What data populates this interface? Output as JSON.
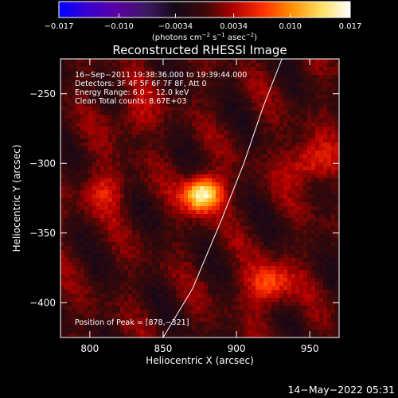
{
  "colorbar": {
    "min_label": "−0.017",
    "ticks": [
      "−0.017",
      "−0.010",
      "−0.0034",
      "0.0034",
      "0.010",
      "0.017"
    ],
    "tick_values": [
      -0.017,
      -0.01,
      -0.0034,
      0.0034,
      0.01,
      0.017
    ],
    "unit_prefix": "(photons cm",
    "unit_exp1": "−2",
    "unit_mid": " s",
    "unit_exp2": "−1",
    "unit_mid2": " asec",
    "unit_exp3": "−2",
    "unit_suffix": ")",
    "colormap": [
      "#0000ff",
      "#3a00d0",
      "#5a00a0",
      "#3c1860",
      "#160818",
      "#3a0808",
      "#b00000",
      "#ff3000",
      "#ff9000",
      "#ffe060",
      "#ffffff"
    ]
  },
  "chart_data": {
    "type": "heatmap",
    "title": "Reconstructed RHESSI Image",
    "xlabel": "Heliocentric X (arcsec)",
    "ylabel": "Heliocentric Y (arcsec)",
    "xlim": [
      780,
      970
    ],
    "ylim": [
      -425,
      -225
    ],
    "xticks": [
      800,
      850,
      900,
      950
    ],
    "yticks": [
      -250,
      -300,
      -350,
      -400
    ],
    "info_lines": [
      "16−Sep−2011 19:38:36.000 to 19:39:44.000",
      "Detectors: 3F 4F 5F 6F 7F 8F, Att 0",
      "Energy Range: 6.0 − 12.0 keV",
      "Clean    Total counts: 8.67E+03"
    ],
    "peak_label": "Position of Peak = [878,−321]",
    "peak": [
      878,
      -321
    ],
    "sources": [
      {
        "x": 877,
        "y": -322,
        "peak": 0.017
      },
      {
        "x": 922,
        "y": -387,
        "peak": 0.008
      },
      {
        "x": 950,
        "y": -300,
        "peak": 0.007
      },
      {
        "x": 810,
        "y": -320,
        "peak": 0.005
      },
      {
        "x": 830,
        "y": -265,
        "peak": 0.004
      }
    ],
    "limb_curve": [
      [
        850,
        -425
      ],
      [
        870,
        -390
      ],
      [
        890,
        -340
      ],
      [
        905,
        -300
      ],
      [
        918,
        -260
      ],
      [
        931,
        -225
      ]
    ]
  },
  "timestamp": "14−May−2022 05:31"
}
